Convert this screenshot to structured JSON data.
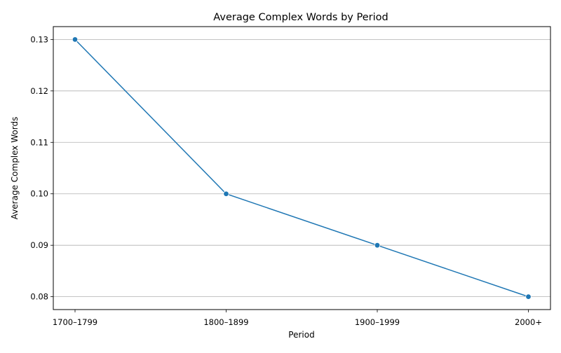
{
  "chart_data": {
    "type": "line",
    "title": "Average Complex Words by Period",
    "xlabel": "Period",
    "ylabel": "Average Complex Words",
    "categories": [
      "1700–1799",
      "1800–1899",
      "1900–1999",
      "2000+"
    ],
    "series": [
      {
        "values": [
          0.13,
          0.1,
          0.09,
          0.08
        ],
        "color": "#1f77b4",
        "marker": "circle"
      }
    ],
    "yticks": [
      "0.08",
      "0.09",
      "0.10",
      "0.11",
      "0.12",
      "0.13"
    ],
    "ylim": [
      0.0775,
      0.1325
    ],
    "grid": "horizontal",
    "legend": "none"
  }
}
